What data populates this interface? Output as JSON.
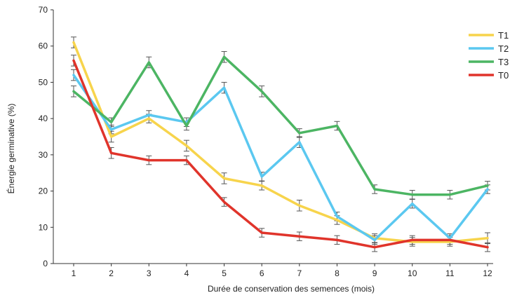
{
  "chart_data": {
    "type": "line",
    "title": "",
    "xlabel": "Durée de conservation des semences (mois)",
    "ylabel": "Énergie germinative (%)",
    "x": [
      1,
      2,
      3,
      4,
      5,
      6,
      7,
      8,
      9,
      10,
      11,
      12
    ],
    "xlim": [
      1,
      12
    ],
    "ylim": [
      0,
      70
    ],
    "yticks": [
      0,
      10,
      20,
      30,
      40,
      50,
      60,
      70
    ],
    "grid": false,
    "legend_position": "top-right",
    "series": [
      {
        "name": "T1",
        "color": "#F7D44C",
        "values": [
          61,
          35,
          40,
          32.5,
          23.5,
          21.5,
          16,
          12,
          7,
          6,
          6,
          7
        ],
        "errors": [
          1.5,
          1.5,
          1.2,
          1.5,
          1.5,
          1.2,
          1.5,
          1.2,
          1.2,
          1.2,
          1.2,
          1.5
        ]
      },
      {
        "name": "T2",
        "color": "#5BC8F0",
        "values": [
          52,
          37,
          41,
          39,
          48.5,
          24,
          33.5,
          13,
          6.5,
          16.5,
          7,
          20.5
        ],
        "errors": [
          1.5,
          1.2,
          1.2,
          1.2,
          1.5,
          1.2,
          1.5,
          1.2,
          1.2,
          1.2,
          1.2,
          1.2
        ]
      },
      {
        "name": "T3",
        "color": "#4CB563",
        "values": [
          47.5,
          39,
          55.5,
          38,
          57,
          47.5,
          36,
          38,
          20.5,
          19,
          19,
          21.5
        ],
        "errors": [
          1.5,
          1.2,
          1.5,
          1.2,
          1.5,
          1.5,
          1.2,
          1.2,
          1.2,
          1.2,
          1.2,
          1.2
        ]
      },
      {
        "name": "T0",
        "color": "#E0342B",
        "values": [
          56,
          30.5,
          28.5,
          28.5,
          17,
          8.5,
          7.5,
          6.5,
          4.5,
          6.5,
          6.5,
          4.5
        ],
        "errors": [
          1.5,
          1.5,
          1.2,
          1.2,
          1.2,
          1.2,
          1.2,
          1.2,
          1.2,
          1.2,
          1.2,
          1.2
        ]
      }
    ]
  }
}
